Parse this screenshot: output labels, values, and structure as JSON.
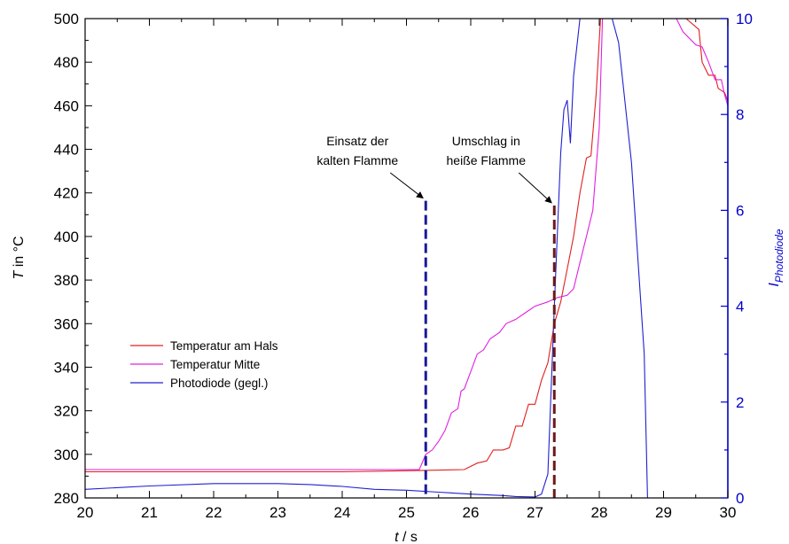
{
  "chart_data": {
    "type": "line",
    "x_axis": {
      "label_var": "t",
      "label_unit": " / s",
      "range": [
        20,
        30
      ],
      "ticks": [
        20,
        21,
        22,
        23,
        24,
        25,
        26,
        27,
        28,
        29,
        30
      ]
    },
    "y_axis_left": {
      "label_var": "T",
      "label_unit": " in °C",
      "range": [
        280,
        500
      ],
      "ticks": [
        280,
        300,
        320,
        340,
        360,
        380,
        400,
        420,
        440,
        460,
        480,
        500
      ],
      "color": "#000000"
    },
    "y_axis_right": {
      "label_main": "I",
      "label_sub": "Photodiode",
      "range": [
        0,
        10
      ],
      "ticks": [
        0,
        2,
        4,
        6,
        8,
        10
      ],
      "color": "#0000cc"
    },
    "grid": false,
    "legend_position": "lower-left",
    "series": [
      {
        "name": "Temperatur am Hals",
        "color": "#e02020",
        "axis": "left",
        "points": [
          [
            20,
            292
          ],
          [
            21,
            292
          ],
          [
            22,
            292
          ],
          [
            23,
            292
          ],
          [
            24,
            292
          ],
          [
            25,
            292.5
          ],
          [
            25.9,
            293
          ],
          [
            26.1,
            296
          ],
          [
            26.25,
            297
          ],
          [
            26.35,
            302
          ],
          [
            26.5,
            302
          ],
          [
            26.6,
            303
          ],
          [
            26.7,
            313
          ],
          [
            26.8,
            313
          ],
          [
            26.9,
            323
          ],
          [
            27.0,
            323
          ],
          [
            27.1,
            334
          ],
          [
            27.2,
            342
          ],
          [
            27.3,
            360
          ],
          [
            27.4,
            370
          ],
          [
            27.5,
            385
          ],
          [
            27.6,
            400
          ],
          [
            27.7,
            420
          ],
          [
            27.8,
            436
          ],
          [
            27.87,
            437
          ],
          [
            27.95,
            465
          ],
          [
            28.02,
            500
          ],
          [
            28.5,
            500
          ],
          [
            28.8,
            500
          ],
          [
            29.0,
            500
          ],
          [
            29.35,
            500
          ],
          [
            29.55,
            495
          ],
          [
            29.6,
            480
          ],
          [
            29.7,
            474
          ],
          [
            29.8,
            474
          ],
          [
            29.85,
            468
          ],
          [
            29.95,
            466
          ],
          [
            30,
            462
          ]
        ]
      },
      {
        "name": "Temperatur Mitte",
        "color": "#e020e0",
        "axis": "left",
        "points": [
          [
            20,
            293
          ],
          [
            21,
            293
          ],
          [
            22,
            293
          ],
          [
            23,
            293
          ],
          [
            24,
            293
          ],
          [
            25,
            293
          ],
          [
            25.2,
            293
          ],
          [
            25.3,
            300
          ],
          [
            25.4,
            302
          ],
          [
            25.5,
            306
          ],
          [
            25.6,
            311
          ],
          [
            25.7,
            319
          ],
          [
            25.8,
            321
          ],
          [
            25.85,
            329
          ],
          [
            25.9,
            330
          ],
          [
            26.0,
            338
          ],
          [
            26.1,
            346
          ],
          [
            26.2,
            348
          ],
          [
            26.3,
            353
          ],
          [
            26.45,
            356
          ],
          [
            26.55,
            360
          ],
          [
            26.7,
            362
          ],
          [
            26.85,
            365
          ],
          [
            27.0,
            368
          ],
          [
            27.2,
            370
          ],
          [
            27.35,
            372
          ],
          [
            27.5,
            373
          ],
          [
            27.6,
            376
          ],
          [
            27.7,
            388
          ],
          [
            27.8,
            400
          ],
          [
            27.9,
            412
          ],
          [
            28.0,
            450
          ],
          [
            28.05,
            500
          ],
          [
            28.6,
            500
          ],
          [
            29.0,
            500
          ],
          [
            29.2,
            500
          ],
          [
            29.3,
            494
          ],
          [
            29.5,
            488
          ],
          [
            29.6,
            487
          ],
          [
            29.7,
            480
          ],
          [
            29.8,
            472
          ],
          [
            29.9,
            472
          ],
          [
            29.95,
            465
          ],
          [
            30,
            460
          ]
        ]
      },
      {
        "name": "Photodiode (gegl.)",
        "color": "#2020d0",
        "axis": "right",
        "points": [
          [
            20,
            0.18
          ],
          [
            21,
            0.25
          ],
          [
            22,
            0.3
          ],
          [
            22.5,
            0.3
          ],
          [
            23,
            0.3
          ],
          [
            23.5,
            0.28
          ],
          [
            24,
            0.24
          ],
          [
            24.5,
            0.18
          ],
          [
            25,
            0.16
          ],
          [
            25.5,
            0.12
          ],
          [
            26,
            0.08
          ],
          [
            26.5,
            0.05
          ],
          [
            26.7,
            0.03
          ],
          [
            27.0,
            0.02
          ],
          [
            27.1,
            0.08
          ],
          [
            27.2,
            0.5
          ],
          [
            27.3,
            4.0
          ],
          [
            27.4,
            7.2
          ],
          [
            27.45,
            8.1
          ],
          [
            27.5,
            8.3
          ],
          [
            27.55,
            7.4
          ],
          [
            27.6,
            8.8
          ],
          [
            27.7,
            10
          ],
          [
            28.2,
            10
          ],
          [
            28.3,
            9.5
          ],
          [
            28.5,
            7.0
          ],
          [
            28.7,
            3.0
          ],
          [
            28.75,
            0
          ]
        ]
      }
    ],
    "annotations": [
      {
        "lines": [
          "Einsatz der",
          "kalten Flamme"
        ],
        "x": 25.3
      },
      {
        "lines": [
          "Umschlag in",
          "heiße Flamme"
        ],
        "x": 27.3
      }
    ],
    "markers": [
      {
        "x": 25.3,
        "y_top": 6.2,
        "color": "#1a1a99"
      },
      {
        "x": 27.3,
        "y_top": 6.1,
        "color": "#6a1a1a"
      }
    ]
  }
}
